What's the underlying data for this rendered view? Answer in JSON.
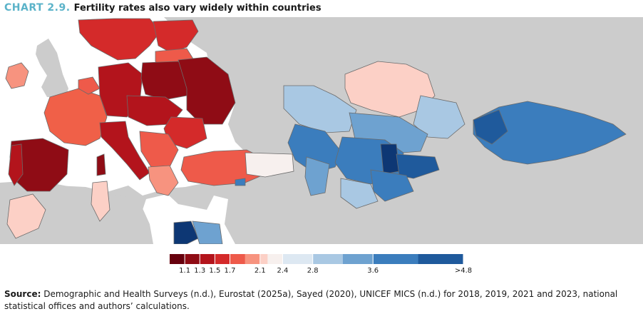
{
  "header": {
    "chart_label": "CHART 2.9.",
    "title": "Fertility rates also vary widely within countries"
  },
  "colors": {
    "land_background": "#cccccc",
    "sea": "#ffffff",
    "border": "#6b6b6b",
    "accent": "#5bb3c9"
  },
  "legend": {
    "ticks": [
      "1.1",
      "1.3",
      "1.5",
      "1.7",
      "2.1",
      "2.4",
      "2.8",
      "3.6",
      ">4.8"
    ],
    "scale": [
      {
        "value": 0.9,
        "color": "#67000d"
      },
      {
        "value": 1.1,
        "color": "#8f0c15"
      },
      {
        "value": 1.3,
        "color": "#b3141c"
      },
      {
        "value": 1.5,
        "color": "#d42a2a"
      },
      {
        "value": 1.7,
        "color": "#ee5a4a"
      },
      {
        "value": 1.9,
        "color": "#f7937f"
      },
      {
        "value": 2.1,
        "color": "#fcd0c6"
      },
      {
        "value": 2.2,
        "color": "#f7f0ee"
      },
      {
        "value": 2.4,
        "color": "#dde8f2"
      },
      {
        "value": 2.8,
        "color": "#a9c8e3"
      },
      {
        "value": 3.2,
        "color": "#6ea2d0"
      },
      {
        "value": 3.6,
        "color": "#3b7dbd"
      },
      {
        "value": 4.2,
        "color": "#1f5a9c"
      },
      {
        "value": 4.8,
        "color": "#0d3774"
      }
    ]
  },
  "source": {
    "label": "Source:",
    "text": "Demographic and Health Surveys (n.d.), Eurostat (2025a), Sayed (2020), UNICEF MICS (n.d.) for 2018, 2019, 2021 and 2023, national statistical offices and authors’ calculations."
  }
}
